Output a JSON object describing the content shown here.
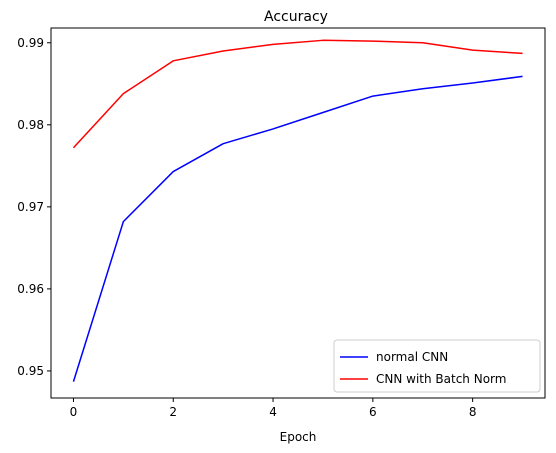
{
  "chart_data": {
    "type": "line",
    "title": "Accuracy",
    "xlabel": "Epoch",
    "ylabel": "",
    "x": [
      0,
      1,
      2,
      3,
      4,
      5,
      6,
      7,
      8,
      9
    ],
    "xlim": [
      -0.45,
      9.45
    ],
    "ylim": [
      0.9467,
      0.9918
    ],
    "xticks": [
      0,
      2,
      4,
      6,
      8
    ],
    "yticks": [
      0.95,
      0.96,
      0.97,
      0.98,
      0.99
    ],
    "xtick_labels": [
      "0",
      "2",
      "4",
      "6",
      "8"
    ],
    "ytick_labels": [
      "0.95",
      "0.96",
      "0.97",
      "0.98",
      "0.99"
    ],
    "grid": false,
    "legend_position": "lower-right",
    "series": [
      {
        "name": " normal CNN",
        "color": "#0000ff",
        "values": [
          0.9487,
          0.9682,
          0.9743,
          0.9777,
          0.9795,
          0.9815,
          0.9835,
          0.9844,
          0.9851,
          0.9859
        ]
      },
      {
        "name": " CNN with Batch Norm",
        "color": "#ff0000",
        "values": [
          0.9772,
          0.9838,
          0.9878,
          0.989,
          0.9898,
          0.9903,
          0.9902,
          0.99,
          0.9891,
          0.9887
        ]
      }
    ]
  }
}
